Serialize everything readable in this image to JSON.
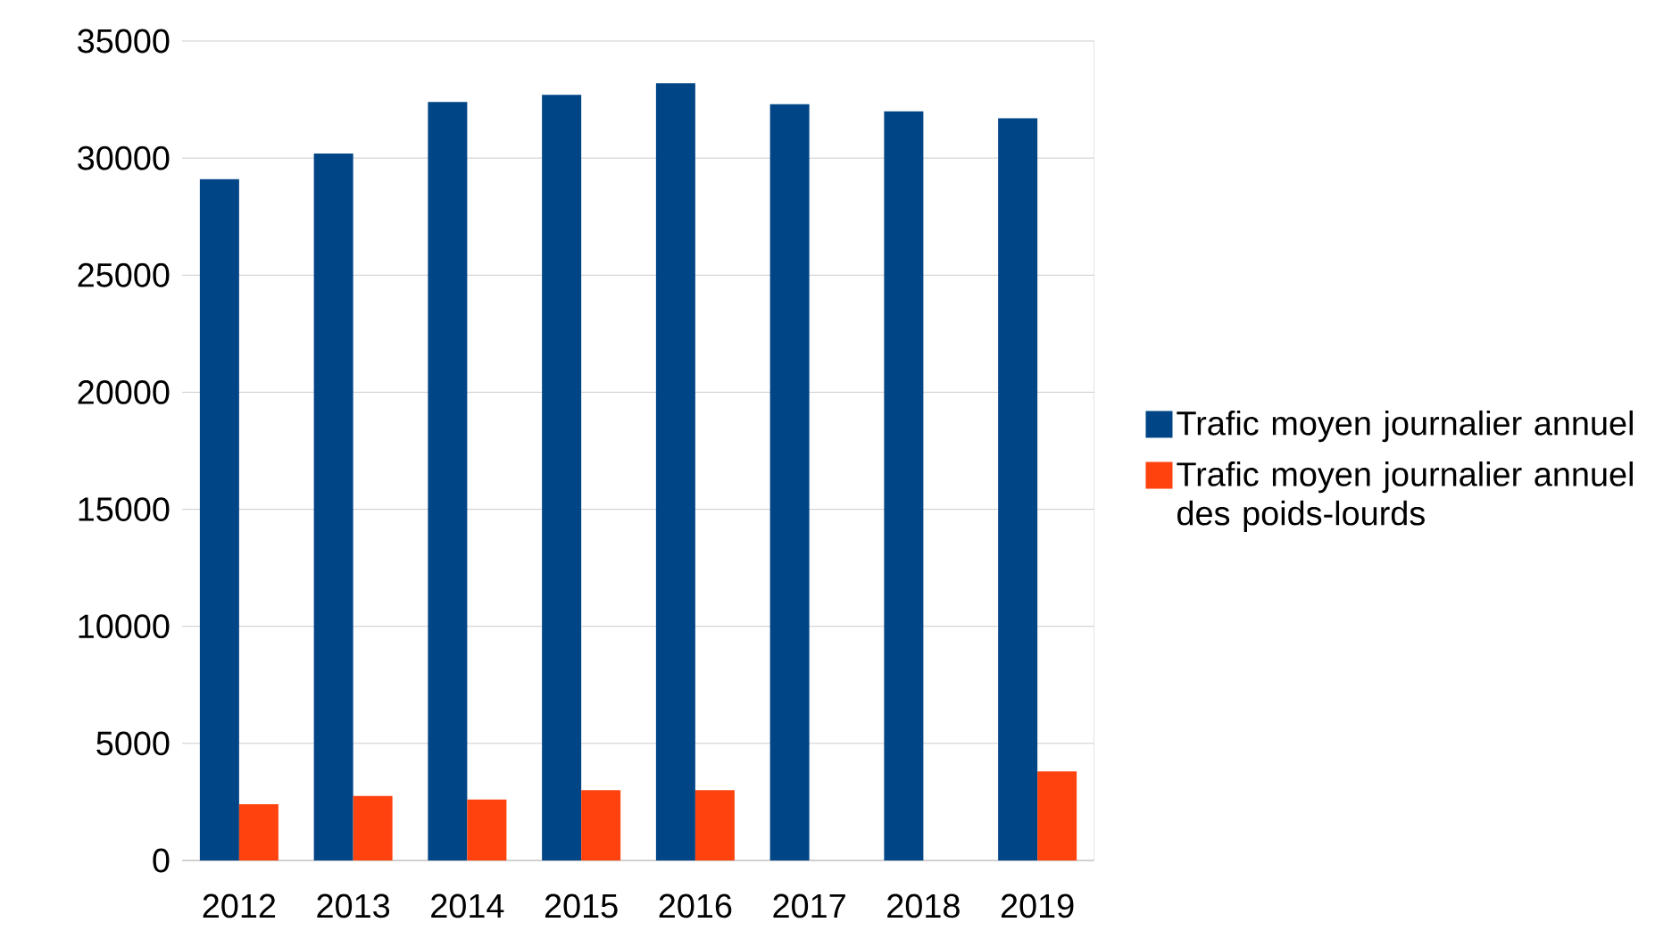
{
  "chart_data": {
    "type": "bar",
    "categories": [
      "2012",
      "2013",
      "2014",
      "2015",
      "2016",
      "2017",
      "2018",
      "2019"
    ],
    "series": [
      {
        "name": "Trafic moyen journalier annuel",
        "color": "#004586",
        "values": [
          29100,
          30200,
          32400,
          32700,
          33200,
          32300,
          32000,
          31700
        ]
      },
      {
        "name": "Trafic moyen journalier annuel des poids-lourds",
        "color": "#ff420e",
        "values": [
          2400,
          2750,
          2600,
          3000,
          3000,
          null,
          null,
          3800
        ]
      }
    ],
    "ylim": [
      0,
      35000
    ],
    "yticks": [
      0,
      5000,
      10000,
      15000,
      20000,
      25000,
      30000,
      35000
    ],
    "grid": "y",
    "legend": "right"
  }
}
